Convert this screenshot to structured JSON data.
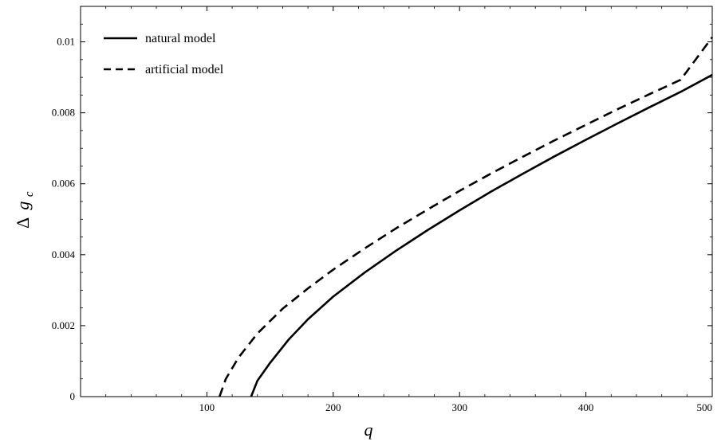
{
  "chart_data": {
    "type": "line",
    "title": "",
    "xlabel": "q",
    "ylabel_symbol": "Δ",
    "ylabel_var": "g",
    "ylabel_sub": "c",
    "xlim": [
      0,
      500
    ],
    "ylim": [
      0,
      0.011
    ],
    "x_ticks": [
      {
        "value": 100,
        "label": "100"
      },
      {
        "value": 200,
        "label": "200"
      },
      {
        "value": 300,
        "label": "300"
      },
      {
        "value": 400,
        "label": "400"
      },
      {
        "value": 500,
        "label": "500"
      }
    ],
    "y_ticks": [
      {
        "value": 0,
        "label": "0"
      },
      {
        "value": 0.002,
        "label": "0.002"
      },
      {
        "value": 0.004,
        "label": "0.004"
      },
      {
        "value": 0.006,
        "label": "0.006"
      },
      {
        "value": 0.008,
        "label": "0.008"
      },
      {
        "value": 0.01,
        "label": "0.01"
      }
    ],
    "grid": false,
    "legend_position": "top-left",
    "series": [
      {
        "name": "natural model",
        "style": "solid",
        "color": "#000000",
        "x": [
          135,
          140,
          150,
          165,
          180,
          200,
          225,
          250,
          275,
          300,
          325,
          350,
          375,
          400,
          425,
          450,
          475,
          500
        ],
        "y": [
          0,
          0.00045,
          0.00095,
          0.00162,
          0.00218,
          0.00282,
          0.0035,
          0.00412,
          0.0047,
          0.00525,
          0.00578,
          0.00628,
          0.00677,
          0.00724,
          0.0077,
          0.00815,
          0.00859,
          0.00907
        ]
      },
      {
        "name": "artificial model",
        "style": "dashed",
        "color": "#000000",
        "x": [
          110,
          115,
          125,
          140,
          160,
          180,
          200,
          225,
          250,
          275,
          300,
          325,
          350,
          375,
          400,
          425,
          450,
          475,
          500
        ],
        "y": [
          0,
          0.0005,
          0.0011,
          0.00178,
          0.00248,
          0.00305,
          0.00358,
          0.00418,
          0.00475,
          0.00528,
          0.0058,
          0.00629,
          0.00676,
          0.00722,
          0.00766,
          0.0081,
          0.00852,
          0.00893,
          0.01013
        ]
      }
    ]
  }
}
